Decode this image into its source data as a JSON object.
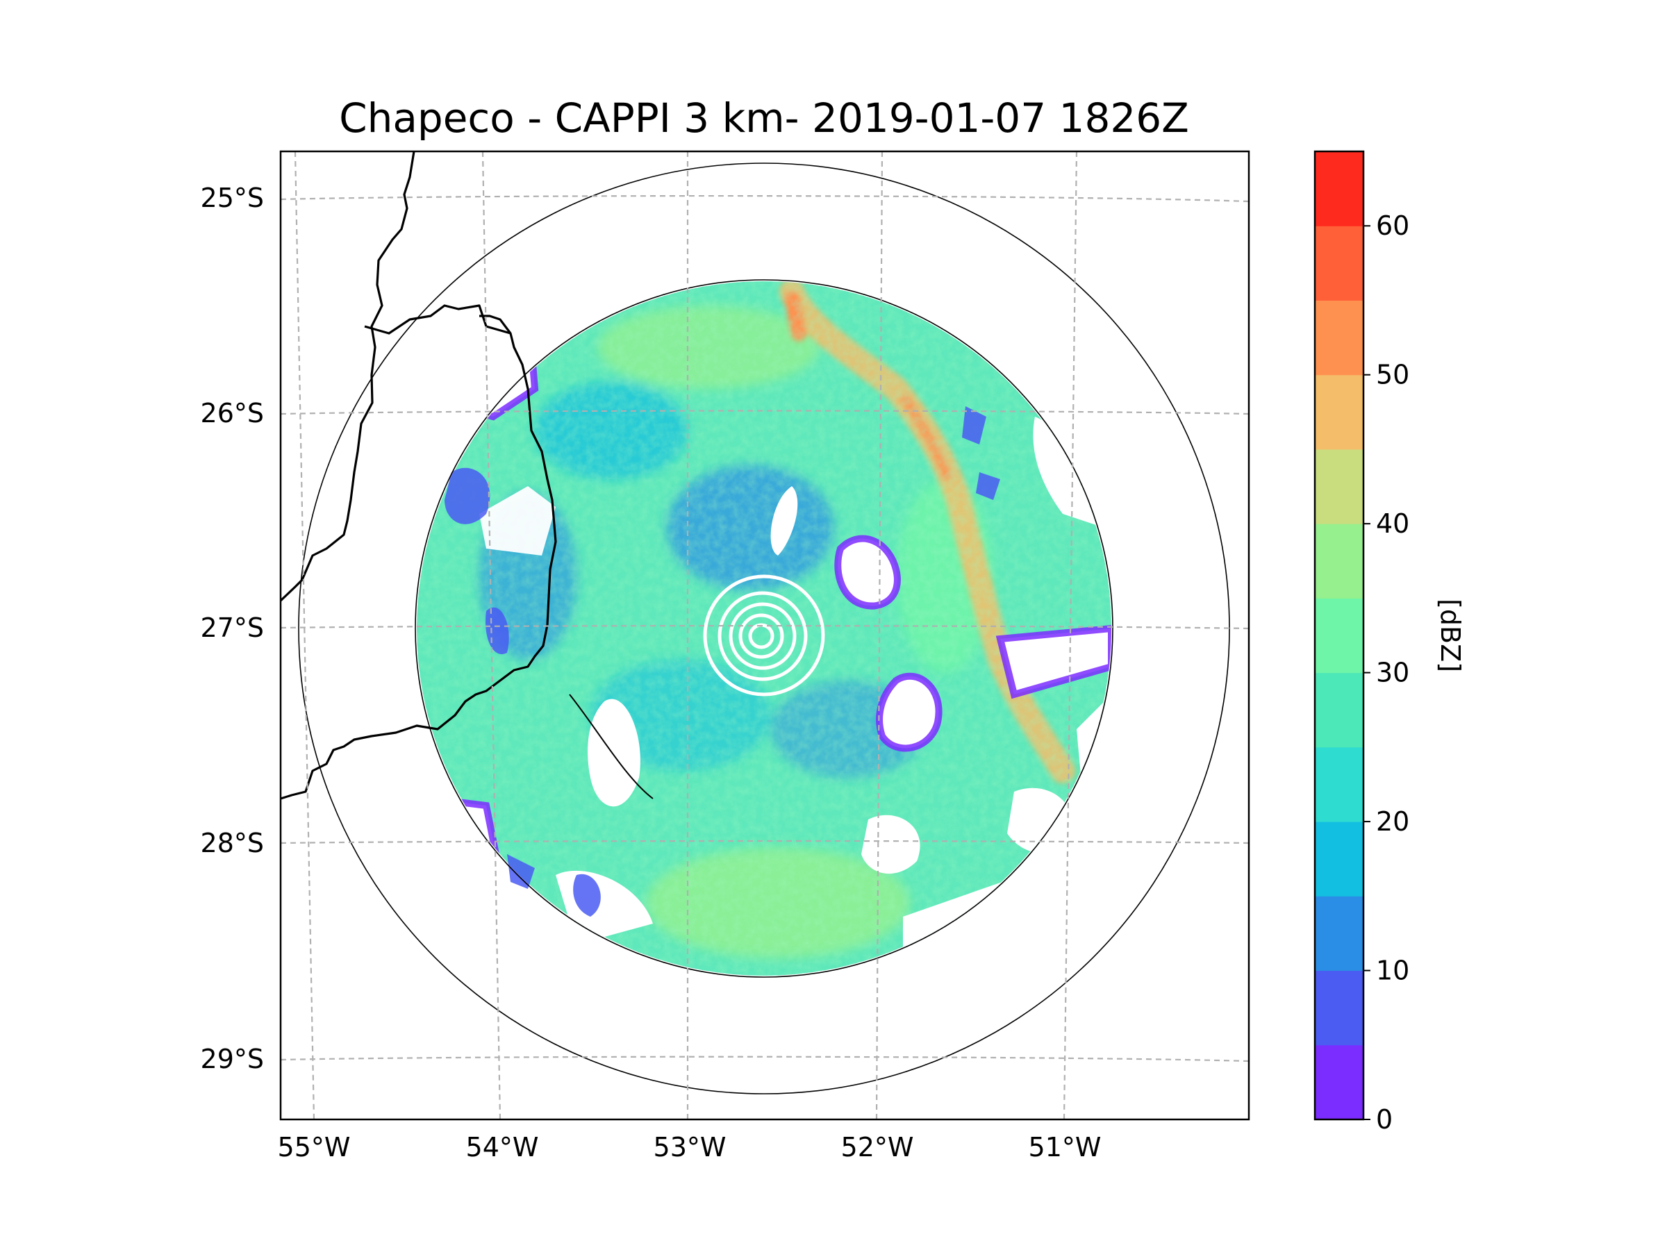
{
  "chart_data": {
    "type": "heatmap",
    "title": "Chapeco - CAPPI 3 km- 2019-01-07 1826Z",
    "x_axis": {
      "ticks": [
        -55,
        -54,
        -53,
        -52,
        -51
      ],
      "tick_labels": [
        "55°W",
        "54°W",
        "53°W",
        "52°W",
        "51°W"
      ],
      "range": [
        -55.2,
        -50.0
      ]
    },
    "y_axis": {
      "ticks": [
        -25,
        -26,
        -27,
        -28,
        -29
      ],
      "tick_labels": [
        "25°S",
        "26°S",
        "27°S",
        "28°S",
        "29°S"
      ],
      "range": [
        -29.3,
        -24.8
      ]
    },
    "grid": true,
    "radar_center": {
      "lon": -52.6,
      "lat": -27.05
    },
    "range_rings_deg": [
      1.62,
      2.16
    ],
    "colorbar": {
      "label": "[dBZ]",
      "min": 0,
      "max": 65,
      "levels": [
        0,
        5,
        10,
        15,
        20,
        25,
        30,
        35,
        40,
        45,
        50,
        55,
        60,
        65
      ],
      "colors": [
        "#7b2cff",
        "#4a5cf2",
        "#2a8ee6",
        "#13bfe0",
        "#2fdcd0",
        "#4de8b7",
        "#6ff5a8",
        "#95f08d",
        "#c9dd7f",
        "#f4bd6a",
        "#ff9150",
        "#ff6038",
        "#ff2a1e"
      ],
      "ticks": [
        0,
        10,
        20,
        30,
        40,
        50,
        60
      ],
      "tick_labels": [
        "0",
        "10",
        "20",
        "30",
        "40",
        "50",
        "60"
      ]
    }
  }
}
